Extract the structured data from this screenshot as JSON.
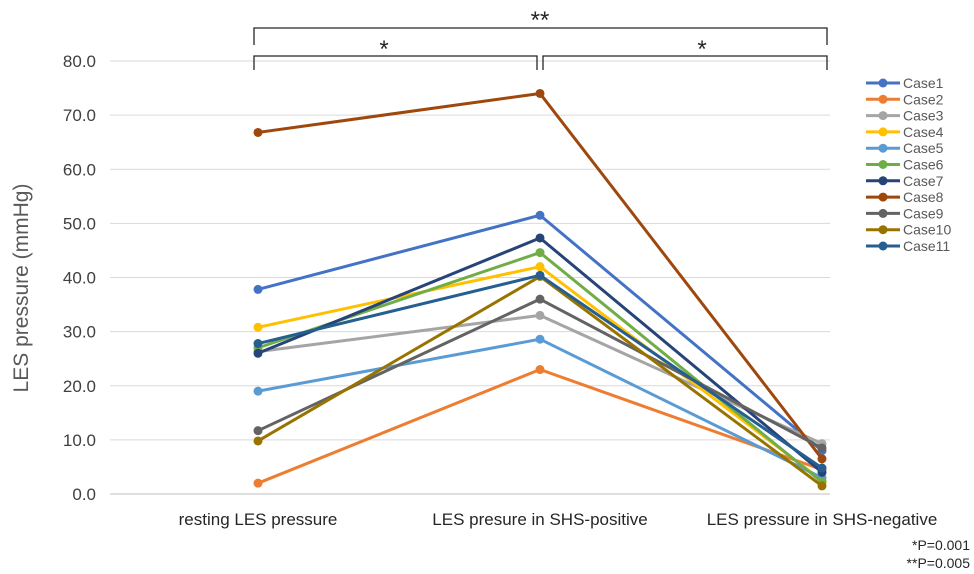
{
  "chart_data": {
    "type": "line",
    "title": "",
    "xlabel": "",
    "ylabel": "LES pressure (mmHg)",
    "categories": [
      "resting LES pressure",
      "LES presure in SHS-positive",
      "LES pressure in SHS-negative"
    ],
    "ylim": [
      0,
      80
    ],
    "yticks": [
      "0.0",
      "10.0",
      "20.0",
      "30.0",
      "40.0",
      "50.0",
      "60.0",
      "70.0",
      "80.0"
    ],
    "grid": true,
    "legend_position": "right",
    "series": [
      {
        "name": "Case1",
        "color": "#4472C4",
        "values": [
          37.8,
          51.5,
          8.0
        ]
      },
      {
        "name": "Case2",
        "color": "#ED7D31",
        "values": [
          2.0,
          23.0,
          4.5
        ]
      },
      {
        "name": "Case3",
        "color": "#A5A5A5",
        "values": [
          26.3,
          33.0,
          9.3
        ]
      },
      {
        "name": "Case4",
        "color": "#FFC000",
        "values": [
          30.8,
          42.0,
          2.5
        ]
      },
      {
        "name": "Case5",
        "color": "#5B9BD5",
        "values": [
          19.0,
          28.6,
          3.0
        ]
      },
      {
        "name": "Case6",
        "color": "#70AD47",
        "values": [
          27.0,
          44.6,
          2.2
        ]
      },
      {
        "name": "Case7",
        "color": "#264478",
        "values": [
          26.0,
          47.3,
          4.0
        ]
      },
      {
        "name": "Case8",
        "color": "#9E480E",
        "values": [
          66.8,
          74.0,
          6.5
        ]
      },
      {
        "name": "Case9",
        "color": "#636363",
        "values": [
          11.7,
          36.0,
          8.5
        ]
      },
      {
        "name": "Case10",
        "color": "#997300",
        "values": [
          9.8,
          40.2,
          1.5
        ]
      },
      {
        "name": "Case11",
        "color": "#255E91",
        "values": [
          27.8,
          40.4,
          4.8
        ]
      }
    ],
    "annotations": {
      "bracket_outer": "**",
      "bracket_left": "*",
      "bracket_right": "*",
      "note1": "*P=0.001",
      "note2": "**P=0.005"
    }
  }
}
